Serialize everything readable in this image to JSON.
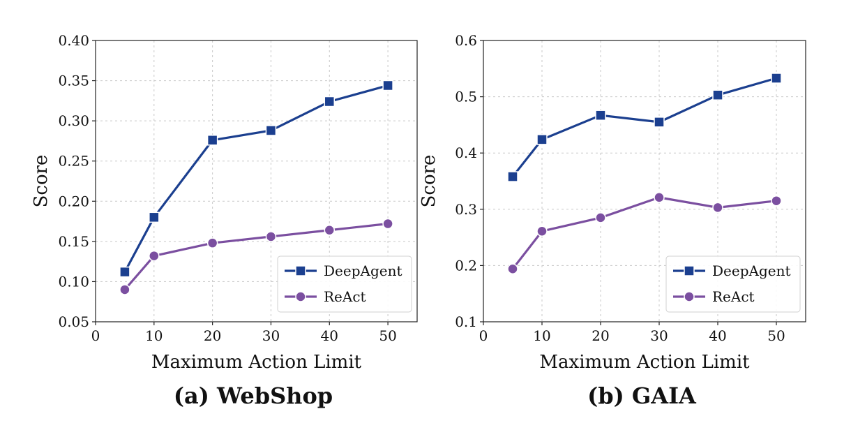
{
  "chart_data": [
    {
      "id": "webshop",
      "type": "line",
      "caption": "(a) WebShop",
      "xlabel": "Maximum Action Limit",
      "ylabel": "Score",
      "xlim": [
        0,
        55
      ],
      "ylim": [
        0.05,
        0.4
      ],
      "xticks": [
        0,
        10,
        20,
        30,
        40,
        50
      ],
      "xtick_labels": [
        "0",
        "10",
        "20",
        "30",
        "40",
        "50"
      ],
      "yticks": [
        0.05,
        0.1,
        0.15,
        0.2,
        0.25,
        0.3,
        0.35,
        0.4
      ],
      "ytick_labels": [
        "0.05",
        "0.10",
        "0.15",
        "0.20",
        "0.25",
        "0.30",
        "0.35",
        "0.40"
      ],
      "grid": true,
      "legend_position": "bottom-right",
      "series": [
        {
          "name": "DeepAgent",
          "marker": "square",
          "color": "#1b3f8f",
          "x": [
            5,
            10,
            20,
            30,
            40,
            50
          ],
          "y": [
            0.112,
            0.18,
            0.276,
            0.288,
            0.324,
            0.344
          ]
        },
        {
          "name": "ReAct",
          "marker": "circle",
          "color": "#7b4fa0",
          "x": [
            5,
            10,
            20,
            30,
            40,
            50
          ],
          "y": [
            0.09,
            0.132,
            0.148,
            0.156,
            0.164,
            0.172
          ]
        }
      ]
    },
    {
      "id": "gaia",
      "type": "line",
      "caption": "(b) GAIA",
      "xlabel": "Maximum Action Limit",
      "ylabel": "Score",
      "xlim": [
        0,
        55
      ],
      "ylim": [
        0.1,
        0.6
      ],
      "xticks": [
        0,
        10,
        20,
        30,
        40,
        50
      ],
      "xtick_labels": [
        "0",
        "10",
        "20",
        "30",
        "40",
        "50"
      ],
      "yticks": [
        0.1,
        0.2,
        0.3,
        0.4,
        0.5,
        0.6
      ],
      "ytick_labels": [
        "0.1",
        "0.2",
        "0.3",
        "0.4",
        "0.5",
        "0.6"
      ],
      "grid": true,
      "legend_position": "bottom-right",
      "series": [
        {
          "name": "DeepAgent",
          "marker": "square",
          "color": "#1b3f8f",
          "x": [
            5,
            10,
            20,
            30,
            40,
            50
          ],
          "y": [
            0.358,
            0.424,
            0.467,
            0.455,
            0.503,
            0.533
          ]
        },
        {
          "name": "ReAct",
          "marker": "circle",
          "color": "#7b4fa0",
          "x": [
            5,
            10,
            20,
            30,
            40,
            50
          ],
          "y": [
            0.194,
            0.261,
            0.285,
            0.321,
            0.303,
            0.315
          ]
        }
      ]
    }
  ]
}
